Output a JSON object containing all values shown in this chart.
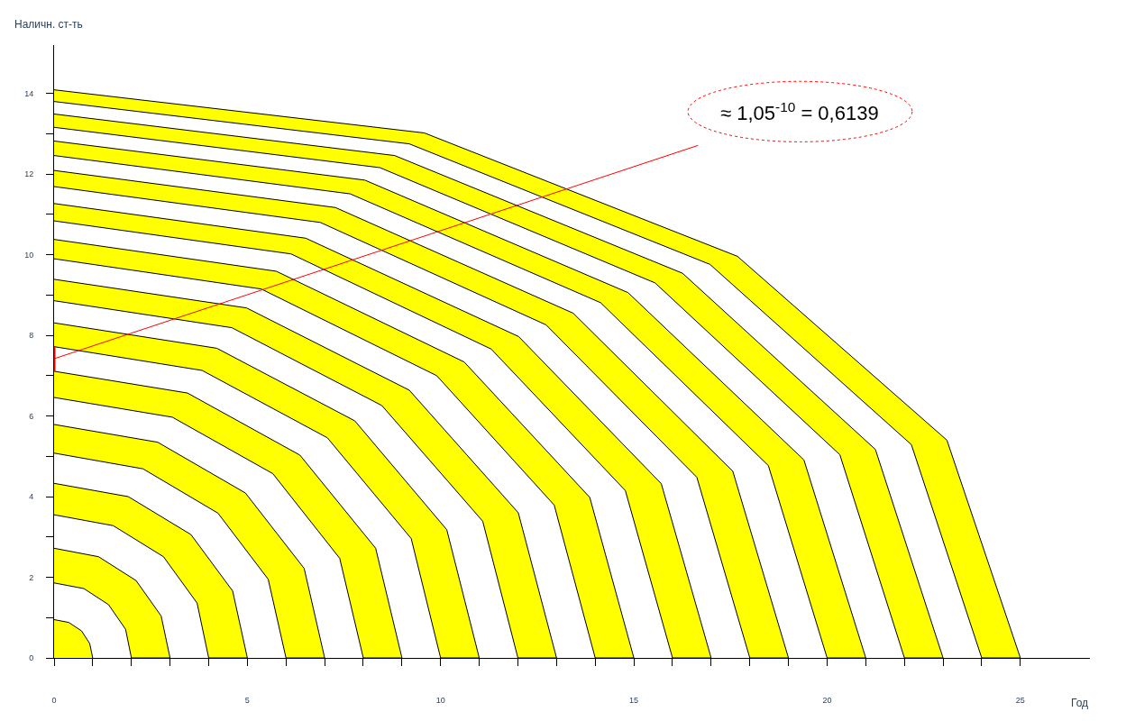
{
  "chart_data": {
    "type": "area",
    "xlabel": "Год",
    "ylabel": "Наличн. ст-ть",
    "xlim": [
      0,
      26.8
    ],
    "ylim": [
      0,
      15.2
    ],
    "xticks": [
      0,
      {
        "value": 1,
        "label": null
      },
      {
        "value": 2,
        "label": null
      },
      {
        "value": 3,
        "label": null
      },
      {
        "value": 4,
        "label": null
      },
      5,
      {
        "value": 6,
        "label": null
      },
      {
        "value": 7,
        "label": null
      },
      {
        "value": 8,
        "label": null
      },
      {
        "value": 9,
        "label": null
      },
      10,
      {
        "value": 11,
        "label": null
      },
      {
        "value": 12,
        "label": null
      },
      {
        "value": 13,
        "label": null
      },
      {
        "value": 14,
        "label": null
      },
      15,
      {
        "value": 16,
        "label": null
      },
      {
        "value": 17,
        "label": null
      },
      {
        "value": 18,
        "label": null
      },
      {
        "value": 19,
        "label": null
      },
      20,
      {
        "value": 21,
        "label": null
      },
      {
        "value": 22,
        "label": null
      },
      {
        "value": 23,
        "label": null
      },
      {
        "value": 24,
        "label": null
      },
      25
    ],
    "yticks": [
      0,
      {
        "value": 1,
        "label": null
      },
      2,
      {
        "value": 3,
        "label": null
      },
      4,
      {
        "value": 5,
        "label": null
      },
      6,
      {
        "value": 7,
        "label": null
      },
      8,
      {
        "value": 9,
        "label": null
      },
      10,
      {
        "value": 11,
        "label": null
      },
      12,
      {
        "value": 13,
        "label": null
      },
      14
    ],
    "grid": false,
    "annotations": [
      {
        "text": "≈ 1,05$^{-10}$ = 0,6139",
        "x": 0,
        "y": 7.42
      }
    ],
    "series": [
      {
        "color": "#ffff00",
        "x": [
          0,
          0.38,
          0.71,
          0.92,
          1
        ],
        "values": [
          0.95,
          0.88,
          0.67,
          0.36,
          0
        ]
      },
      {
        "color": "#ffff00",
        "x": [
          0,
          1.15,
          2.12,
          2.77,
          3,
          2,
          1.85,
          1.41,
          0.77,
          0
        ],
        "values": [
          2.72,
          2.51,
          1.92,
          1.04,
          0,
          0,
          0.71,
          1.32,
          1.72,
          1.86
        ]
      },
      {
        "color": "#ffff00",
        "x": [
          0,
          1.92,
          3.54,
          4.62,
          5,
          4,
          3.7,
          2.83,
          1.53,
          0
        ],
        "values": [
          4.33,
          4.0,
          3.06,
          1.66,
          0,
          0,
          1.36,
          2.51,
          3.28,
          3.55
        ]
      },
      {
        "color": "#ffff00",
        "x": [
          0,
          2.68,
          4.95,
          6.47,
          7,
          6,
          5.54,
          4.24,
          2.3,
          0
        ],
        "values": [
          5.79,
          5.35,
          4.09,
          2.22,
          0,
          0,
          1.95,
          3.59,
          4.69,
          5.08
        ]
      },
      {
        "color": "#ffff00",
        "x": [
          0,
          3.45,
          6.36,
          8.32,
          9,
          8,
          7.39,
          5.66,
          3.06,
          0
        ],
        "values": [
          7.11,
          6.57,
          5.03,
          2.72,
          0,
          0,
          2.47,
          4.57,
          5.97,
          6.46
        ]
      },
      {
        "color": "#ffff00",
        "x": [
          0,
          4.21,
          7.78,
          10.16,
          11,
          10,
          9.24,
          7.07,
          3.83,
          0
        ],
        "values": [
          8.31,
          7.68,
          5.88,
          3.18,
          0,
          0,
          2.96,
          5.46,
          7.13,
          7.72
        ]
      },
      {
        "color": "#ffff00",
        "x": [
          0,
          4.98,
          9.19,
          12.01,
          13,
          12,
          11.09,
          8.48,
          4.6,
          0
        ],
        "values": [
          9.39,
          8.68,
          6.64,
          3.6,
          0,
          0,
          3.39,
          6.26,
          8.19,
          8.86
        ]
      },
      {
        "color": "#ffff00",
        "x": [
          0,
          5.75,
          10.61,
          13.86,
          15,
          14,
          12.94,
          9.9,
          5.36,
          0
        ],
        "values": [
          10.38,
          9.59,
          7.34,
          3.98,
          0,
          0,
          3.79,
          7.0,
          9.15,
          9.9
        ]
      },
      {
        "color": "#ffff00",
        "x": [
          0,
          6.51,
          12.02,
          15.71,
          17,
          16,
          14.78,
          11.31,
          6.13,
          0
        ],
        "values": [
          11.27,
          10.41,
          7.97,
          4.32,
          0,
          0,
          4.15,
          7.66,
          10.02,
          10.84
        ]
      },
      {
        "color": "#ffff00",
        "x": [
          0,
          7.28,
          13.43,
          17.56,
          19,
          18,
          16.63,
          12.73,
          6.89,
          0
        ],
        "values": [
          12.09,
          11.17,
          8.55,
          4.63,
          0,
          0,
          4.48,
          8.26,
          10.8,
          11.69
        ]
      },
      {
        "color": "#ffff00",
        "x": [
          0,
          8.04,
          14.85,
          19.4,
          21,
          20,
          18.48,
          14.14,
          7.66,
          0
        ],
        "values": [
          12.82,
          11.85,
          9.06,
          4.91,
          0,
          0,
          4.77,
          8.81,
          11.51,
          12.46
        ]
      },
      {
        "color": "#ffff00",
        "x": [
          0,
          8.81,
          16.26,
          21.25,
          23,
          22,
          20.33,
          15.55,
          8.43,
          0
        ],
        "values": [
          13.49,
          12.46,
          9.54,
          5.17,
          0,
          0,
          5.04,
          9.3,
          12.16,
          13.16
        ]
      },
      {
        "color": "#ffff00",
        "x": [
          0,
          9.58,
          17.68,
          23.1,
          25,
          24,
          22.18,
          16.97,
          9.19,
          0
        ],
        "values": [
          14.09,
          13.02,
          9.96,
          5.4,
          0,
          0,
          5.29,
          9.76,
          12.75,
          13.8
        ]
      },
      {
        "type": "line",
        "color": "#ff0000",
        "x": [
          0,
          0
        ],
        "values": [
          7.11,
          7.72
        ]
      }
    ]
  }
}
